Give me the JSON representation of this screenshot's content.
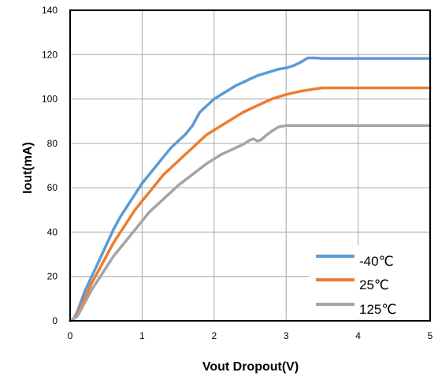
{
  "chart_data": {
    "type": "line",
    "title": "",
    "xlabel": "Vout Dropout(V)",
    "ylabel": "Iout(mA)",
    "xlim": [
      0,
      5
    ],
    "ylim": [
      0,
      140
    ],
    "xticks": [
      "0",
      "1",
      "2",
      "3",
      "4",
      "5"
    ],
    "yticks": [
      "0",
      "20",
      "40",
      "60",
      "80",
      "100",
      "120",
      "140"
    ],
    "grid": true,
    "legend_position": "bottom-right",
    "series": [
      {
        "name": "-40℃",
        "color": "#5b9bd5",
        "points": [
          [
            0,
            0
          ],
          [
            0.05,
            1
          ],
          [
            0.1,
            4
          ],
          [
            0.2,
            13
          ],
          [
            0.3,
            20
          ],
          [
            0.4,
            27
          ],
          [
            0.5,
            34
          ],
          [
            0.6,
            41
          ],
          [
            0.7,
            47
          ],
          [
            0.8,
            52
          ],
          [
            0.9,
            57
          ],
          [
            1.0,
            62
          ],
          [
            1.1,
            66
          ],
          [
            1.2,
            70
          ],
          [
            1.3,
            74
          ],
          [
            1.4,
            78
          ],
          [
            1.5,
            81
          ],
          [
            1.6,
            84
          ],
          [
            1.7,
            88
          ],
          [
            1.8,
            94
          ],
          [
            1.9,
            97
          ],
          [
            2.0,
            100
          ],
          [
            2.1,
            102
          ],
          [
            2.2,
            104
          ],
          [
            2.3,
            106
          ],
          [
            2.4,
            107.5
          ],
          [
            2.5,
            109
          ],
          [
            2.6,
            110.5
          ],
          [
            2.7,
            111.5
          ],
          [
            2.8,
            112.5
          ],
          [
            2.9,
            113.5
          ],
          [
            3.0,
            114
          ],
          [
            3.1,
            115
          ],
          [
            3.2,
            116.5
          ],
          [
            3.3,
            118.5
          ],
          [
            3.4,
            118.5
          ],
          [
            3.5,
            118.3
          ],
          [
            4.0,
            118.3
          ],
          [
            4.5,
            118.3
          ],
          [
            5.0,
            118.3
          ]
        ]
      },
      {
        "name": "25℃",
        "color": "#ed7d31",
        "points": [
          [
            0,
            0
          ],
          [
            0.05,
            1
          ],
          [
            0.1,
            3
          ],
          [
            0.2,
            10
          ],
          [
            0.3,
            17
          ],
          [
            0.4,
            23
          ],
          [
            0.5,
            29
          ],
          [
            0.6,
            35
          ],
          [
            0.7,
            40
          ],
          [
            0.8,
            45
          ],
          [
            0.9,
            50
          ],
          [
            1.0,
            54
          ],
          [
            1.1,
            58
          ],
          [
            1.2,
            62
          ],
          [
            1.3,
            66
          ],
          [
            1.4,
            69
          ],
          [
            1.5,
            72
          ],
          [
            1.6,
            75
          ],
          [
            1.7,
            78
          ],
          [
            1.8,
            81
          ],
          [
            1.9,
            84
          ],
          [
            2.0,
            86
          ],
          [
            2.2,
            90
          ],
          [
            2.4,
            94
          ],
          [
            2.6,
            97
          ],
          [
            2.8,
            100
          ],
          [
            3.0,
            102
          ],
          [
            3.2,
            103.5
          ],
          [
            3.4,
            104.5
          ],
          [
            3.5,
            105
          ],
          [
            4.0,
            105
          ],
          [
            4.5,
            105
          ],
          [
            5.0,
            105
          ]
        ]
      },
      {
        "name": "125℃",
        "color": "#a5a5a5",
        "points": [
          [
            0,
            0
          ],
          [
            0.05,
            1
          ],
          [
            0.1,
            2
          ],
          [
            0.2,
            8
          ],
          [
            0.3,
            14
          ],
          [
            0.4,
            19
          ],
          [
            0.5,
            24
          ],
          [
            0.6,
            29
          ],
          [
            0.7,
            33
          ],
          [
            0.8,
            37
          ],
          [
            0.9,
            41
          ],
          [
            1.0,
            45
          ],
          [
            1.1,
            49
          ],
          [
            1.2,
            52
          ],
          [
            1.3,
            55
          ],
          [
            1.4,
            58
          ],
          [
            1.5,
            61
          ],
          [
            1.6,
            63.5
          ],
          [
            1.7,
            66
          ],
          [
            1.8,
            68.5
          ],
          [
            1.9,
            71
          ],
          [
            2.0,
            73
          ],
          [
            2.1,
            75
          ],
          [
            2.2,
            76.5
          ],
          [
            2.3,
            78
          ],
          [
            2.4,
            79.5
          ],
          [
            2.5,
            81.5
          ],
          [
            2.55,
            82
          ],
          [
            2.6,
            81
          ],
          [
            2.65,
            81.5
          ],
          [
            2.7,
            83
          ],
          [
            2.8,
            85.5
          ],
          [
            2.9,
            87.5
          ],
          [
            3.0,
            88
          ],
          [
            3.5,
            88
          ],
          [
            4.0,
            88
          ],
          [
            4.5,
            88
          ],
          [
            5.0,
            88
          ]
        ]
      }
    ]
  }
}
